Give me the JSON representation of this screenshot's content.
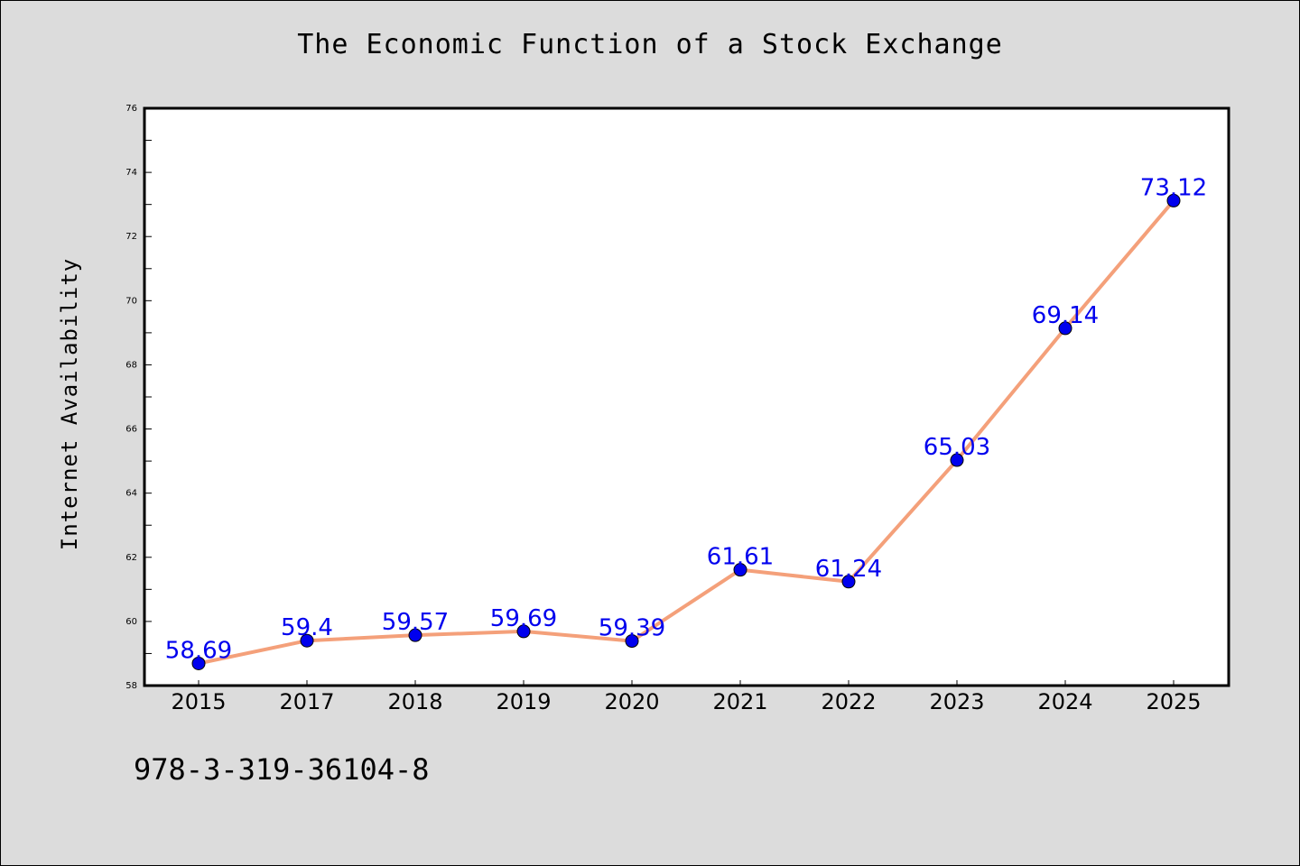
{
  "chart_data": {
    "type": "line",
    "title": "The Economic Function of a Stock Exchange",
    "xlabel": "",
    "ylabel": "Internet Availability",
    "categories": [
      "2015",
      "2017",
      "2018",
      "2019",
      "2020",
      "2021",
      "2022",
      "2023",
      "2024",
      "2025"
    ],
    "series": [
      {
        "values": [
          58.69,
          59.4,
          59.57,
          59.69,
          59.39,
          61.61,
          61.24,
          65.03,
          69.14,
          73.12
        ],
        "labels": [
          "58.69",
          "59.4",
          "59.57",
          "59.69",
          "59.39",
          "61.61",
          "61.24",
          "65.03",
          "69.14",
          "73.12"
        ],
        "line_color": "#f4a07a",
        "marker_color": "#0000ee",
        "label_color": "#0000ee"
      }
    ],
    "ylim": [
      58,
      76
    ],
    "yticks": [
      "58",
      "60",
      "62",
      "64",
      "66",
      "68",
      "70",
      "72",
      "74",
      "76"
    ],
    "grid": false,
    "legend": "none"
  },
  "footer": {
    "isbn": "978-3-319-36104-8"
  },
  "colors": {
    "background": "#dcdcdc",
    "plot_background": "#ffffff"
  }
}
